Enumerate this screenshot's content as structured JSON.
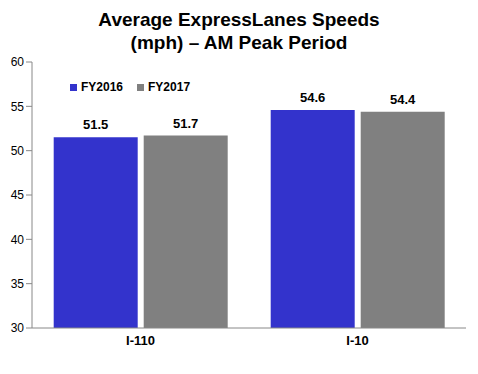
{
  "chart_data": {
    "type": "bar",
    "title": "Average ExpressLanes Speeds\n(mph) – AM Peak Period",
    "categories": [
      "I-110",
      "I-10"
    ],
    "series": [
      {
        "name": "FY2016",
        "color": "#3333cc",
        "values": [
          51.5,
          54.6
        ]
      },
      {
        "name": "FY2017",
        "color": "#808080",
        "values": [
          51.7,
          54.4
        ]
      }
    ],
    "ylim": [
      30,
      60
    ],
    "yticks": [
      30,
      35,
      40,
      45,
      50,
      55,
      60
    ],
    "grid": false,
    "legend": "upper left",
    "data_labels": true
  }
}
